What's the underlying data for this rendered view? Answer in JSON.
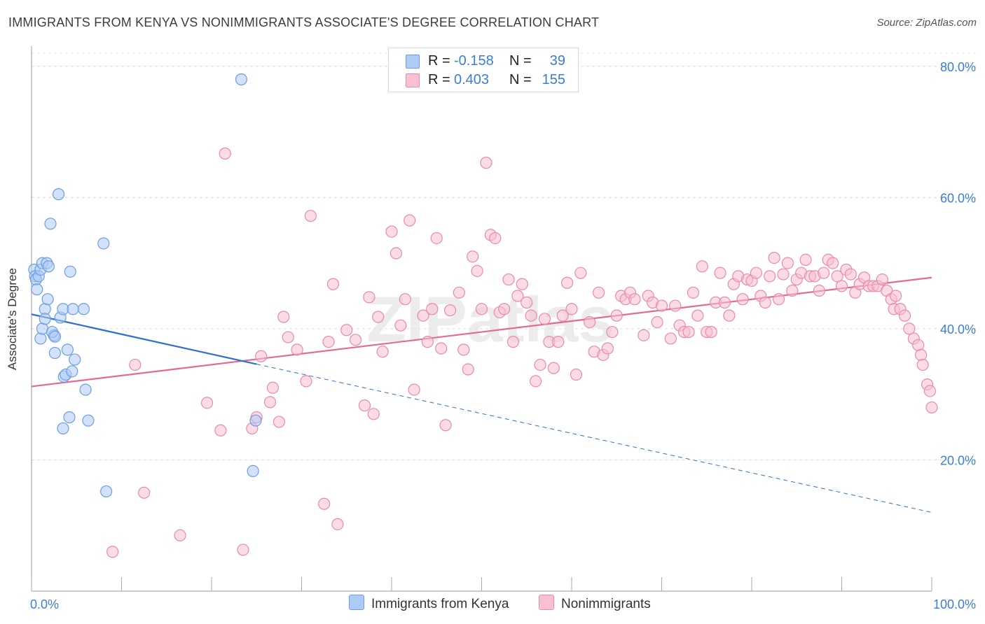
{
  "title": "IMMIGRANTS FROM KENYA VS NONIMMIGRANTS ASSOCIATE'S DEGREE CORRELATION CHART",
  "source": "Source: ZipAtlas.com",
  "watermark": "ZIPatlas",
  "legend": {
    "rows": [
      {
        "r_label": "R =",
        "r_value": "-0.158",
        "n_label": "N =",
        "n_value": "39",
        "color": "#aecbf5",
        "border": "#6a9fe0"
      },
      {
        "r_label": "R =",
        "r_value": "0.403",
        "n_label": "N =",
        "n_value": "155",
        "color": "#f8c0d2",
        "border": "#e88aaa"
      }
    ]
  },
  "bottom_legend": [
    {
      "label": "Immigrants from Kenya",
      "color": "#aecbf5",
      "border": "#6a9fe0"
    },
    {
      "label": "Nonimmigrants",
      "color": "#f8c0d2",
      "border": "#e88aaa"
    }
  ],
  "chart_data": {
    "type": "scatter",
    "title": "IMMIGRANTS FROM KENYA VS NONIMMIGRANTS ASSOCIATE'S DEGREE CORRELATION CHART",
    "xlabel": "",
    "ylabel": "Associate's Degree",
    "xlim": [
      0,
      100
    ],
    "ylim": [
      0,
      82
    ],
    "x_tick_labels": [
      "0.0%",
      "100.0%"
    ],
    "y_ticks": [
      20,
      40,
      60,
      80
    ],
    "y_tick_labels": [
      "20.0%",
      "40.0%",
      "60.0%",
      "80.0%"
    ],
    "grid": true,
    "series": [
      {
        "name": "Immigrants from Kenya",
        "color": "#6a9fe0",
        "fill": "#aecbf5",
        "trend": {
          "x0": 0,
          "y0": 42.2,
          "x1": 25,
          "y1": 34.6,
          "dash_x1": 100,
          "dash_y1": 12.0,
          "color": "#2f6fd0"
        },
        "points": [
          [
            0.3,
            49
          ],
          [
            0.4,
            48
          ],
          [
            0.5,
            47.5
          ],
          [
            0.6,
            46
          ],
          [
            0.8,
            48
          ],
          [
            1.0,
            49
          ],
          [
            1.2,
            50
          ],
          [
            1.5,
            43
          ],
          [
            1.7,
            50
          ],
          [
            1.8,
            44.5
          ],
          [
            2.1,
            56
          ],
          [
            2.5,
            39
          ],
          [
            2.6,
            36.3
          ],
          [
            3.0,
            60.5
          ],
          [
            3.2,
            41.7
          ],
          [
            3.5,
            43
          ],
          [
            3.6,
            32.7
          ],
          [
            3.8,
            33
          ],
          [
            4.0,
            36.8
          ],
          [
            4.2,
            26.5
          ],
          [
            4.3,
            48.7
          ],
          [
            4.5,
            33.5
          ],
          [
            4.6,
            43
          ],
          [
            4.8,
            35.3
          ],
          [
            1.0,
            38.5
          ],
          [
            1.2,
            40
          ],
          [
            1.5,
            41.5
          ],
          [
            2.3,
            39.5
          ],
          [
            2.6,
            38.8
          ],
          [
            3.5,
            24.8
          ],
          [
            5.8,
            43
          ],
          [
            6.0,
            30.7
          ],
          [
            6.3,
            26
          ],
          [
            8.0,
            53
          ],
          [
            8.3,
            15.2
          ],
          [
            23.3,
            78
          ],
          [
            24.9,
            26
          ],
          [
            24.6,
            18.3
          ],
          [
            1.9,
            49.5
          ]
        ]
      },
      {
        "name": "Nonimmigrants",
        "color": "#e88aaa",
        "fill": "#f8c0d2",
        "trend": {
          "x0": 0,
          "y0": 31.2,
          "x1": 100,
          "y1": 47.8,
          "color": "#e26a93"
        },
        "points": [
          [
            9,
            6
          ],
          [
            11.5,
            34.5
          ],
          [
            12.5,
            15
          ],
          [
            16.5,
            8.5
          ],
          [
            19.5,
            28.7
          ],
          [
            21,
            24.5
          ],
          [
            21.5,
            66.7
          ],
          [
            23.5,
            6.3
          ],
          [
            24.5,
            24.8
          ],
          [
            25,
            26.5
          ],
          [
            25.5,
            35.8
          ],
          [
            26.5,
            28.8
          ],
          [
            26.8,
            31
          ],
          [
            27.5,
            25.8
          ],
          [
            28,
            41.8
          ],
          [
            28.5,
            38.7
          ],
          [
            29.5,
            36.8
          ],
          [
            30.5,
            32
          ],
          [
            31,
            57.2
          ],
          [
            32.5,
            13.3
          ],
          [
            33,
            38
          ],
          [
            33.5,
            46.8
          ],
          [
            34,
            10.2
          ],
          [
            35,
            39.8
          ],
          [
            36,
            38.3
          ],
          [
            37,
            28.3
          ],
          [
            37.5,
            44.8
          ],
          [
            38,
            27
          ],
          [
            38.5,
            41.8
          ],
          [
            39,
            36.5
          ],
          [
            40,
            54.8
          ],
          [
            40.5,
            51.5
          ],
          [
            41,
            40.5
          ],
          [
            41.5,
            44.5
          ],
          [
            42,
            56.5
          ],
          [
            42.5,
            30.7
          ],
          [
            43.5,
            42
          ],
          [
            44,
            38
          ],
          [
            44.5,
            43
          ],
          [
            45,
            53.8
          ],
          [
            45.5,
            37
          ],
          [
            46,
            25.3
          ],
          [
            46.5,
            42.8
          ],
          [
            47.5,
            45.5
          ],
          [
            48,
            36.8
          ],
          [
            48.5,
            33.8
          ],
          [
            49,
            51
          ],
          [
            49.5,
            48.8
          ],
          [
            50,
            43
          ],
          [
            50.5,
            65.3
          ],
          [
            51,
            54.3
          ],
          [
            51.5,
            53.8
          ],
          [
            52,
            42.5
          ],
          [
            52.5,
            43
          ],
          [
            53,
            47.5
          ],
          [
            53.5,
            38
          ],
          [
            54,
            45
          ],
          [
            54.5,
            46.8
          ],
          [
            55,
            44
          ],
          [
            55.5,
            42
          ],
          [
            56,
            32
          ],
          [
            56.5,
            34.5
          ],
          [
            57,
            41.5
          ],
          [
            57.5,
            38
          ],
          [
            58,
            34
          ],
          [
            58.5,
            38
          ],
          [
            59,
            42
          ],
          [
            59.5,
            47
          ],
          [
            60,
            43
          ],
          [
            60.5,
            33
          ],
          [
            61,
            48.5
          ],
          [
            62,
            41
          ],
          [
            62.5,
            36.5
          ],
          [
            63,
            45.5
          ],
          [
            63.5,
            36
          ],
          [
            64,
            37
          ],
          [
            64.5,
            39.5
          ],
          [
            65,
            42
          ],
          [
            65.5,
            45
          ],
          [
            66,
            44.5
          ],
          [
            66.5,
            45.5
          ],
          [
            67,
            44.5
          ],
          [
            68,
            39
          ],
          [
            68.5,
            45
          ],
          [
            69,
            44
          ],
          [
            69.5,
            41
          ],
          [
            70,
            43.5
          ],
          [
            71,
            38.5
          ],
          [
            71.5,
            43.5
          ],
          [
            72,
            40.5
          ],
          [
            72.5,
            39.5
          ],
          [
            73,
            39.5
          ],
          [
            73.5,
            45.5
          ],
          [
            74,
            42
          ],
          [
            74.5,
            49.5
          ],
          [
            75,
            39.5
          ],
          [
            75.5,
            39.5
          ],
          [
            76,
            44
          ],
          [
            76.5,
            48.5
          ],
          [
            77,
            44
          ],
          [
            77.5,
            42
          ],
          [
            78,
            46.8
          ],
          [
            78.5,
            48
          ],
          [
            79,
            44.5
          ],
          [
            79.5,
            47.5
          ],
          [
            80,
            47.3
          ],
          [
            80.5,
            48.5
          ],
          [
            81,
            45
          ],
          [
            81.5,
            44
          ],
          [
            82,
            48
          ],
          [
            82.5,
            50.8
          ],
          [
            83,
            44.5
          ],
          [
            83.5,
            48.3
          ],
          [
            84,
            50
          ],
          [
            84.5,
            45.8
          ],
          [
            85,
            47.5
          ],
          [
            85.5,
            48.5
          ],
          [
            86,
            50.5
          ],
          [
            86.5,
            48
          ],
          [
            87,
            48
          ],
          [
            87.5,
            45.8
          ],
          [
            88,
            48.5
          ],
          [
            88.5,
            50.5
          ],
          [
            89,
            50
          ],
          [
            89.5,
            48
          ],
          [
            90,
            46.5
          ],
          [
            90.5,
            49
          ],
          [
            91,
            48.3
          ],
          [
            91.5,
            45.5
          ],
          [
            92,
            46.8
          ],
          [
            92.5,
            47.8
          ],
          [
            93,
            46.5
          ],
          [
            93.5,
            46.5
          ],
          [
            94,
            46.5
          ],
          [
            94.5,
            47.5
          ],
          [
            95,
            45.8
          ],
          [
            95.5,
            44.5
          ],
          [
            95.8,
            43
          ],
          [
            96,
            45
          ],
          [
            96.5,
            43
          ],
          [
            97,
            42
          ],
          [
            97.5,
            40
          ],
          [
            98,
            38.5
          ],
          [
            98.5,
            37.5
          ],
          [
            98.8,
            36
          ],
          [
            99,
            34.5
          ],
          [
            99.5,
            31.5
          ],
          [
            99.8,
            30.5
          ],
          [
            100,
            28
          ]
        ]
      }
    ]
  }
}
